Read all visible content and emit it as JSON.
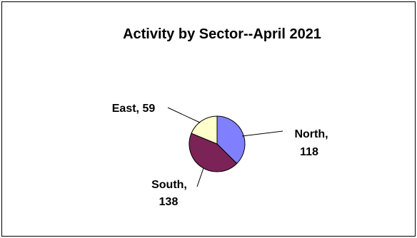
{
  "chart_data": {
    "type": "pie",
    "title": "Activity by Sector--April 2021",
    "slices": [
      {
        "name": "North",
        "value": 118,
        "color": "#8080ff"
      },
      {
        "name": "South",
        "value": 138,
        "color": "#7b2357"
      },
      {
        "name": "East",
        "value": 59,
        "color": "#ffffcc"
      }
    ],
    "data_labels": [
      {
        "line1": "North,",
        "line2": "118"
      },
      {
        "line1": "South,",
        "line2": "138"
      },
      {
        "line1": "East, 59",
        "line2": ""
      }
    ],
    "legend": "none",
    "grid": false
  }
}
